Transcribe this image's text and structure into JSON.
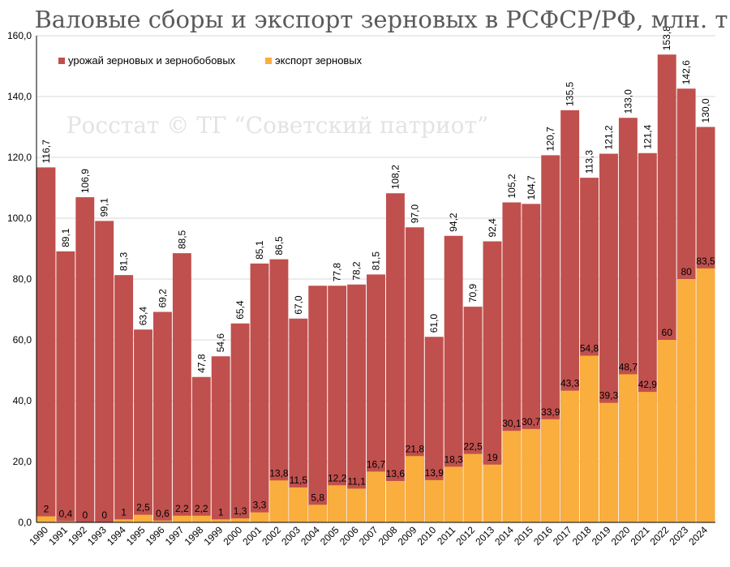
{
  "chart_data": {
    "type": "bar",
    "title": "Валовые сборы и экспорт зерновых в РСФСР/РФ, млн. т",
    "watermark": "Росстат © ТГ “Советский патриот”",
    "xlabel": "",
    "ylabel": "",
    "ylim": [
      0,
      160
    ],
    "y_ticks": [
      "0,0",
      "20,0",
      "40,0",
      "60,0",
      "80,0",
      "100,0",
      "120,0",
      "140,0",
      "160,0"
    ],
    "grid": true,
    "legend_position": "top-left",
    "categories": [
      "1990",
      "1991",
      "1992",
      "1993",
      "1994",
      "1995",
      "1996",
      "1997",
      "1998",
      "1999",
      "2000",
      "2001",
      "2002",
      "2003",
      "2004",
      "2005",
      "2006",
      "2007",
      "2008",
      "2009",
      "2010",
      "2011",
      "2012",
      "2013",
      "2014",
      "2015",
      "2016",
      "2017",
      "2018",
      "2019",
      "2020",
      "2021",
      "2022",
      "2023",
      "2024"
    ],
    "series": [
      {
        "name": "урожай зерновых и зернобобовых",
        "color": "#c0504d",
        "values": [
          116.7,
          89.1,
          106.9,
          99.1,
          81.3,
          63.4,
          69.2,
          88.5,
          47.8,
          54.6,
          65.4,
          85.1,
          86.5,
          67.0,
          77.8,
          77.8,
          78.2,
          81.5,
          108.2,
          97.0,
          61.0,
          94.2,
          70.9,
          92.4,
          105.2,
          104.7,
          120.7,
          135.5,
          113.3,
          121.2,
          133.0,
          121.4,
          153.8,
          142.6,
          130.0
        ],
        "labels": [
          "116,7",
          "89,1",
          "106,9",
          "99,1",
          "81,3",
          "63,4",
          "69,2",
          "88,5",
          "47,8",
          "54,6",
          "65,4",
          "85,1",
          "86,5",
          "67,0",
          "",
          "77,8",
          "78,2",
          "81,5",
          "108,2",
          "97,0",
          "61,0",
          "94,2",
          "70,9",
          "92,4",
          "105,2",
          "104,7",
          "120,7",
          "135,5",
          "113,3",
          "121,2",
          "133,0",
          "121,4",
          "153,8",
          "142,6",
          "130,0"
        ]
      },
      {
        "name": "экспорт зерновых",
        "color": "#f9ae3d",
        "values": [
          2,
          0.4,
          0,
          0,
          1,
          2.5,
          0.6,
          2.2,
          2.2,
          1,
          1.3,
          3.3,
          13.8,
          11.5,
          5.8,
          12.2,
          11.1,
          16.7,
          13.6,
          21.8,
          13.9,
          18.3,
          22.5,
          19,
          30.1,
          30.7,
          33.9,
          43.3,
          54.8,
          39.3,
          48.7,
          42.9,
          60,
          80,
          83.5
        ],
        "labels": [
          "2",
          "0,4",
          "0",
          "0",
          "1",
          "2,5",
          "0,6",
          "2,2",
          "2,2",
          "1",
          "1,3",
          "3,3",
          "13,8",
          "11,5",
          "5,8",
          "12,2",
          "11,1",
          "16,7",
          "13,6",
          "21,8",
          "13,9",
          "18,3",
          "22,5",
          "19",
          "30,1",
          "30,7",
          "33,9",
          "43,3",
          "54,8",
          "39,3",
          "48,7",
          "42,9",
          "60",
          "80",
          "83,5"
        ]
      }
    ]
  }
}
